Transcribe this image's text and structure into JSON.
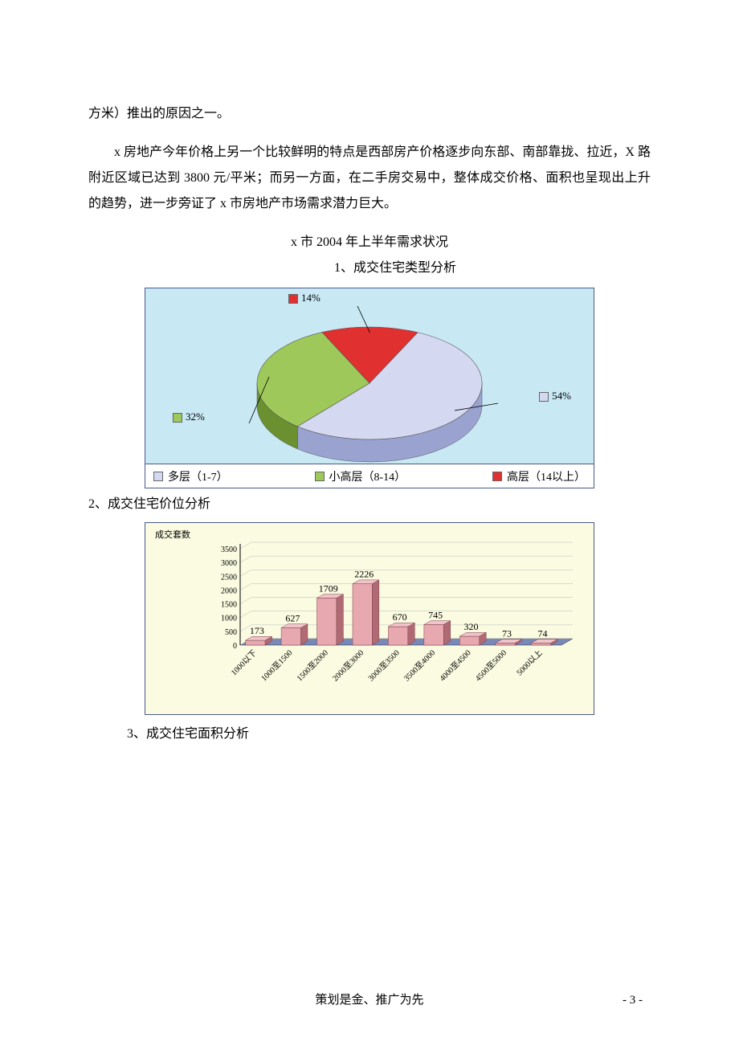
{
  "text": {
    "p1": "方米）推出的原因之一。",
    "p2": "x 房地产今年价格上另一个比较鲜明的特点是西部房产价格逐步向东部、南部靠拢、拉近，X 路附近区域已达到 3800 元/平米；而另一方面，在二手房交易中，整体成交价格、面积也呈现出上升的趋势，进一步旁证了 x 市房地产市场需求潜力巨大。",
    "h1": "x 市 2004 年上半年需求状况",
    "s1": "1、成交住宅类型分析",
    "s2": "2、成交住宅价位分析",
    "s3": "3、成交住宅面积分析",
    "footer": "策划是金、推广为先",
    "pagenum": "- 3 -"
  },
  "pie": {
    "type": "pie",
    "background_color": "#c8e8f4",
    "border_color": "#4a5a8a",
    "slices": [
      {
        "label": "多层（1-7）",
        "pct": 54,
        "display": "54%",
        "top_color": "#d4d8f0",
        "side_color": "#9aa2d0",
        "swatch": "#d4d8f0"
      },
      {
        "label": "小高层（8-14）",
        "pct": 32,
        "display": "32%",
        "top_color": "#9ec85a",
        "side_color": "#6a9030",
        "swatch": "#9ec85a"
      },
      {
        "label": "高层（14以上）",
        "pct": 14,
        "display": "14%",
        "top_color": "#e03030",
        "side_color": "#a01818",
        "swatch": "#e03030"
      }
    ],
    "label_fontsize": 13,
    "legend": {
      "bg": "#ffffff",
      "items": [
        "多层（1-7）",
        "小高层（8-14）",
        "高层（14以上）"
      ]
    }
  },
  "bar": {
    "type": "bar",
    "background_color": "#fafbe0",
    "border_color": "#4a5a8a",
    "y_axis_label": "成交套数",
    "categories": [
      "1000以下",
      "1000至1500",
      "1500至2000",
      "2000至3000",
      "3000至3500",
      "3500至4000",
      "4000至4500",
      "4500至5000",
      "5000以上"
    ],
    "values": [
      173,
      627,
      1709,
      2226,
      670,
      745,
      320,
      73,
      74
    ],
    "bar_top_color": "#e7a8b0",
    "bar_side_color": "#b06a74",
    "floor_color": "#7888b8",
    "axis_color": "#000000",
    "value_label_fontsize": 12,
    "category_label_fontsize": 10,
    "ylim": [
      0,
      3500
    ],
    "ytick_step": 500,
    "yticks": [
      "0",
      "500",
      "1000",
      "1500",
      "2000",
      "2500",
      "3000",
      "3500"
    ]
  }
}
